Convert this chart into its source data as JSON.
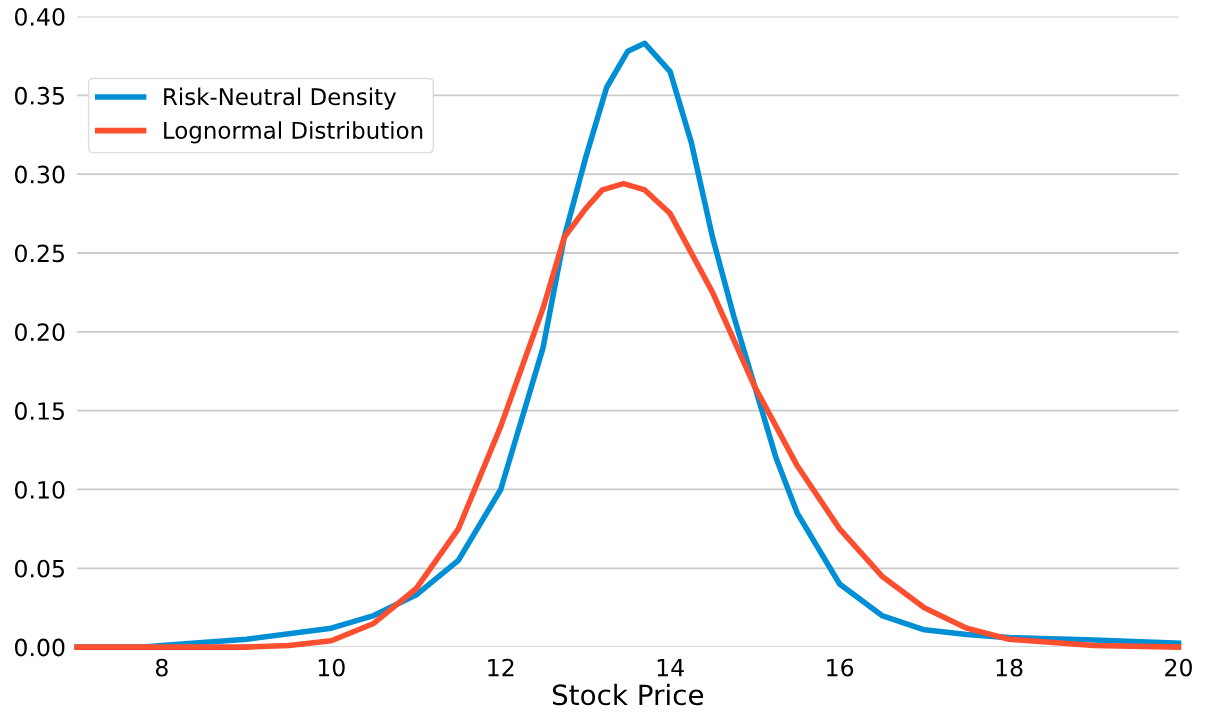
{
  "chart_data": {
    "type": "line",
    "xlabel": "Stock Price",
    "xlim": [
      7,
      20
    ],
    "xticks": [
      8,
      10,
      12,
      14,
      16,
      18,
      20
    ],
    "ylim": [
      0,
      0.4
    ],
    "yticks": [
      {
        "value": 0,
        "label": "0.00"
      },
      {
        "value": 0.05,
        "label": "0.05"
      },
      {
        "value": 0.1,
        "label": "0.10"
      },
      {
        "value": 0.15,
        "label": "0.15"
      },
      {
        "value": 0.2,
        "label": "0.20"
      },
      {
        "value": 0.25,
        "label": "0.25"
      },
      {
        "value": 0.3,
        "label": "0.30"
      },
      {
        "value": 0.35,
        "label": "0.35"
      },
      {
        "value": 0.4,
        "label": "0.40"
      }
    ],
    "grid": "y",
    "legend": "top left",
    "series": [
      {
        "name": "Risk-Neutral Density",
        "color": "#008fd5",
        "x": [
          7,
          7.8,
          8,
          9,
          10,
          10.5,
          11,
          11.5,
          12,
          12.5,
          12.75,
          13,
          13.25,
          13.5,
          13.7,
          14,
          14.25,
          14.5,
          14.75,
          15,
          15.25,
          15.5,
          16,
          16.5,
          17,
          17.5,
          18,
          19,
          20
        ],
        "values": [
          0,
          0,
          0.001,
          0.005,
          0.012,
          0.02,
          0.033,
          0.055,
          0.1,
          0.19,
          0.26,
          0.31,
          0.355,
          0.378,
          0.383,
          0.365,
          0.32,
          0.26,
          0.21,
          0.165,
          0.12,
          0.085,
          0.04,
          0.02,
          0.011,
          0.008,
          0.006,
          0.0045,
          0.0025
        ]
      },
      {
        "name": "Lognormal Distribution",
        "color": "#fc4f30",
        "x": [
          7,
          9,
          9.5,
          10,
          10.5,
          11,
          11.5,
          12,
          12.5,
          12.75,
          13,
          13.2,
          13.45,
          13.7,
          14,
          14.5,
          15,
          15.5,
          16,
          16.5,
          17,
          17.5,
          18,
          19,
          20
        ],
        "values": [
          0,
          0,
          0.001,
          0.004,
          0.015,
          0.037,
          0.075,
          0.14,
          0.215,
          0.26,
          0.278,
          0.29,
          0.294,
          0.29,
          0.275,
          0.225,
          0.165,
          0.115,
          0.075,
          0.045,
          0.025,
          0.012,
          0.005,
          0.001,
          0
        ]
      }
    ]
  }
}
